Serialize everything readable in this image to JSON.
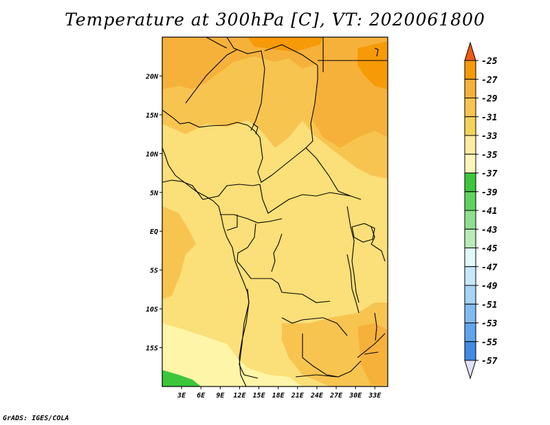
{
  "title": "Temperature at 300hPa [C], VT: 2020061800",
  "footer": "GrADS: IGES/COLA",
  "map": {
    "region": "Central Africa",
    "lon_range_deg": [
      0,
      35
    ],
    "lat_range_deg": [
      -20,
      25
    ],
    "lat_ticks": [
      {
        "label": "20N",
        "lat": 20
      },
      {
        "label": "15N",
        "lat": 15
      },
      {
        "label": "10N",
        "lat": 10
      },
      {
        "label": "5N",
        "lat": 5
      },
      {
        "label": "EQ",
        "lat": 0
      },
      {
        "label": "5S",
        "lat": -5
      },
      {
        "label": "10S",
        "lat": -10
      },
      {
        "label": "15S",
        "lat": -15
      }
    ],
    "lon_ticks": [
      {
        "label": "3E",
        "lon": 3
      },
      {
        "label": "6E",
        "lon": 6
      },
      {
        "label": "9E",
        "lon": 9
      },
      {
        "label": "12E",
        "lon": 12
      },
      {
        "label": "15E",
        "lon": 15
      },
      {
        "label": "18E",
        "lon": 18
      },
      {
        "label": "21E",
        "lon": 21
      },
      {
        "label": "24E",
        "lon": 24
      },
      {
        "label": "27E",
        "lon": 27
      },
      {
        "label": "30E",
        "lon": 30
      },
      {
        "label": "33E",
        "lon": 33
      }
    ]
  },
  "colorbar": {
    "labels": [
      "-25",
      "-27",
      "-29",
      "-31",
      "-33",
      "-35",
      "-37",
      "-39",
      "-41",
      "-43",
      "-45",
      "-47",
      "-49",
      "-51",
      "-53",
      "-55",
      "-57"
    ],
    "colors": [
      "#f2d45a",
      "#ffeca0",
      "#fdf6bb",
      "#3cc63c",
      "#5fd25f",
      "#8ee08e",
      "#b7ecb7",
      "#e1f9f9",
      "#c6e8fb",
      "#a4d4f6",
      "#80bcf1",
      "#5fa4ec",
      "#418ae5",
      "#2b6fd8",
      "#1752c2",
      "#0a38a6",
      "#08087a"
    ],
    "top_arrow_color": "#ef5a14",
    "bottom_arrow_color": "#e2e2ff",
    "top_colors": [
      "#ef5a14",
      "#f69a08",
      "#f6b13b",
      "#f8c450"
    ]
  },
  "field_colors": {
    "c_27_25": "#f69a08",
    "c_29_27": "#f6b13b",
    "c_31_29": "#f8c450",
    "c_33_31": "#fbdf78",
    "c_35_33": "#fff5a8",
    "c_37_35": "#3cc63c"
  }
}
